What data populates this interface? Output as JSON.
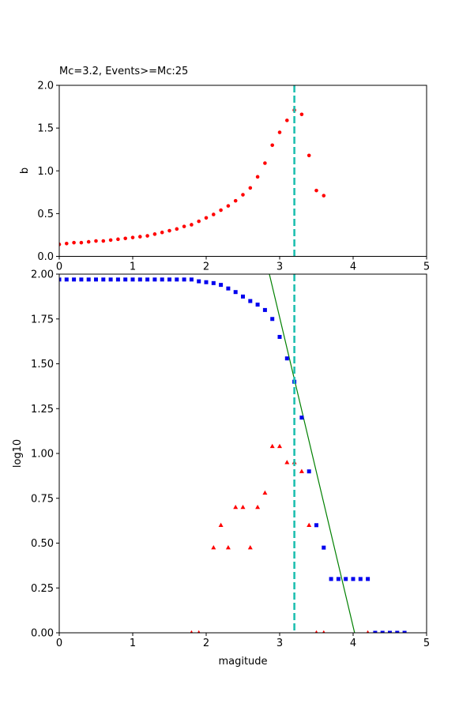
{
  "figure": {
    "colors": {
      "b_points": "#ff0000",
      "cumulative_points": "#0000ee",
      "noncumulative_points": "#ff0000",
      "fit_line": "#008000",
      "mc_line": "#1fbfb0"
    }
  },
  "chart_data": [
    {
      "type": "scatter",
      "title": "Mc=3.2, Events>=Mc:25",
      "xlabel": "",
      "ylabel": "b",
      "xlim": [
        0,
        5
      ],
      "ylim": [
        0,
        2.0
      ],
      "xticks": [
        "0",
        "1",
        "2",
        "3",
        "4",
        "5"
      ],
      "yticks": [
        "0.0",
        "0.5",
        "1.0",
        "1.5",
        "2.0"
      ],
      "grid": false,
      "vline": {
        "x": 3.2,
        "style": "dashed"
      },
      "series": [
        {
          "marker": "circle",
          "x": [
            0.0,
            0.1,
            0.2,
            0.3,
            0.4,
            0.5,
            0.6,
            0.7,
            0.8,
            0.9,
            1.0,
            1.1,
            1.2,
            1.3,
            1.4,
            1.5,
            1.6,
            1.7,
            1.8,
            1.9,
            2.0,
            2.1,
            2.2,
            2.3,
            2.4,
            2.5,
            2.6,
            2.7,
            2.8,
            2.9,
            3.0,
            3.1,
            3.2,
            3.3,
            3.4,
            3.5,
            3.6
          ],
          "y": [
            0.14,
            0.15,
            0.16,
            0.16,
            0.17,
            0.18,
            0.18,
            0.19,
            0.2,
            0.21,
            0.22,
            0.23,
            0.24,
            0.26,
            0.28,
            0.3,
            0.32,
            0.35,
            0.37,
            0.41,
            0.45,
            0.49,
            0.54,
            0.59,
            0.65,
            0.72,
            0.8,
            0.93,
            1.09,
            1.3,
            1.45,
            1.59,
            1.71,
            1.66,
            1.18,
            0.77,
            0.71
          ]
        }
      ]
    },
    {
      "type": "scatter",
      "title": "",
      "xlabel": "magitude",
      "ylabel": "log10",
      "xlim": [
        0,
        5
      ],
      "ylim": [
        0,
        2.0
      ],
      "xticks": [
        "0",
        "1",
        "2",
        "3",
        "4",
        "5"
      ],
      "yticks": [
        "0.00",
        "0.25",
        "0.50",
        "0.75",
        "1.00",
        "1.25",
        "1.50",
        "1.75",
        "2.00"
      ],
      "grid": false,
      "vline": {
        "x": 3.2,
        "style": "dashed"
      },
      "fit_line": {
        "x": [
          2.86,
          4.02
        ],
        "y": [
          2.0,
          0.0
        ]
      },
      "series": [
        {
          "marker": "square",
          "role": "cumulative",
          "x": [
            0.0,
            0.1,
            0.2,
            0.3,
            0.4,
            0.5,
            0.6,
            0.7,
            0.8,
            0.9,
            1.0,
            1.1,
            1.2,
            1.3,
            1.4,
            1.5,
            1.6,
            1.7,
            1.8,
            1.9,
            2.0,
            2.1,
            2.2,
            2.3,
            2.4,
            2.5,
            2.6,
            2.7,
            2.8,
            2.9,
            3.0,
            3.1,
            3.2,
            3.3,
            3.4,
            3.5,
            3.6,
            3.7,
            3.8,
            3.9,
            4.0,
            4.1,
            4.2,
            4.3,
            4.4,
            4.5,
            4.6,
            4.7
          ],
          "y": [
            1.97,
            1.97,
            1.97,
            1.97,
            1.97,
            1.97,
            1.97,
            1.97,
            1.97,
            1.97,
            1.97,
            1.97,
            1.97,
            1.97,
            1.97,
            1.97,
            1.97,
            1.97,
            1.97,
            1.96,
            1.955,
            1.95,
            1.94,
            1.92,
            1.9,
            1.875,
            1.85,
            1.83,
            1.8,
            1.75,
            1.65,
            1.53,
            1.4,
            1.2,
            0.9,
            0.6,
            0.475,
            0.3,
            0.3,
            0.3,
            0.3,
            0.3,
            0.3,
            0.0,
            0.0,
            0.0,
            0.0,
            0.0
          ]
        },
        {
          "marker": "triangle",
          "role": "non-cumulative",
          "x": [
            1.8,
            1.9,
            2.1,
            2.2,
            2.3,
            2.4,
            2.5,
            2.6,
            2.7,
            2.8,
            2.9,
            3.0,
            3.1,
            3.2,
            3.3,
            3.4,
            3.5,
            3.6,
            4.2
          ],
          "y": [
            0.0,
            0.0,
            0.475,
            0.6,
            0.475,
            0.7,
            0.7,
            0.475,
            0.7,
            0.78,
            1.04,
            1.04,
            0.95,
            0.95,
            0.9,
            0.6,
            0.0,
            0.0,
            0.0
          ]
        }
      ]
    }
  ]
}
